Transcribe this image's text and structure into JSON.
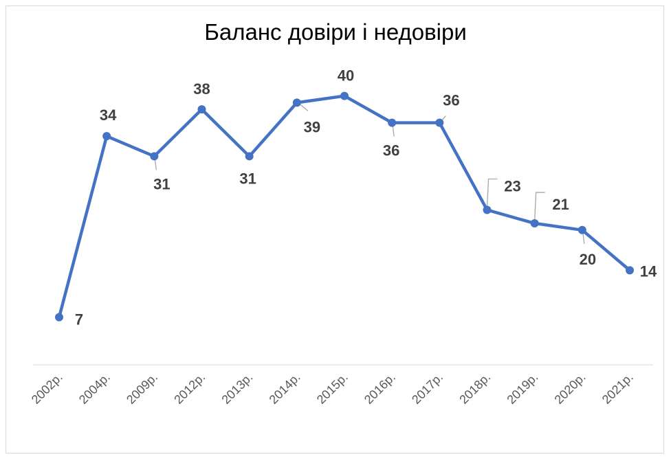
{
  "chart_data": {
    "type": "line",
    "title": "Баланс довіри і недовіри",
    "categories": [
      "2002р.",
      "2004р.",
      "2009р.",
      "2012р.",
      "2013р.",
      "2014р.",
      "2015р.",
      "2016р.",
      "2017р.",
      "2018р.",
      "2019р.",
      "2020р.",
      "2021р."
    ],
    "series": [
      {
        "values": [
          7,
          34,
          31,
          38,
          31,
          39,
          40,
          36,
          36,
          23,
          21,
          20,
          14
        ],
        "color": "#4472c4"
      }
    ],
    "ylim": [
      0,
      45
    ],
    "grid": false,
    "legend": "none",
    "data_labels": true
  }
}
